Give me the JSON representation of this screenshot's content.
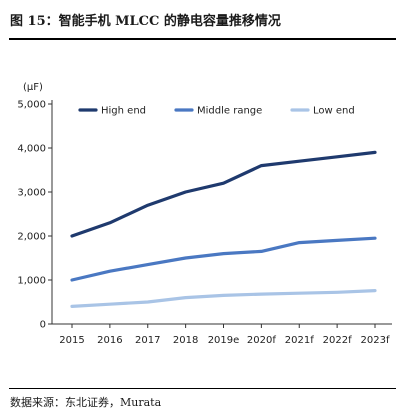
{
  "figure": {
    "title": "图 15：智能手机 MLCC 的静电容量推移情况",
    "source": "数据来源：东北证券，Murata"
  },
  "chart_data": {
    "type": "line",
    "title": "",
    "xlabel": "",
    "ylabel": "(μF)",
    "ylim": [
      0,
      5000
    ],
    "yticks": [
      "0",
      "1,000",
      "2,000",
      "3,000",
      "4,000",
      "5,000"
    ],
    "categories": [
      "2015",
      "2016",
      "2017",
      "2018",
      "2019e",
      "2020f",
      "2021f",
      "2022f",
      "2023f"
    ],
    "grid": false,
    "legend_position": "top-left",
    "series": [
      {
        "name": "High end",
        "color": "#1f3a6e",
        "values": [
          2000,
          2300,
          2700,
          3000,
          3200,
          3600,
          3700,
          3800,
          3900
        ]
      },
      {
        "name": "Middle range",
        "color": "#4a78c2",
        "values": [
          1000,
          1200,
          1350,
          1500,
          1600,
          1650,
          1850,
          1900,
          1950
        ]
      },
      {
        "name": "Low end",
        "color": "#a9c4e6",
        "values": [
          400,
          450,
          500,
          600,
          650,
          680,
          700,
          720,
          760
        ]
      }
    ]
  }
}
